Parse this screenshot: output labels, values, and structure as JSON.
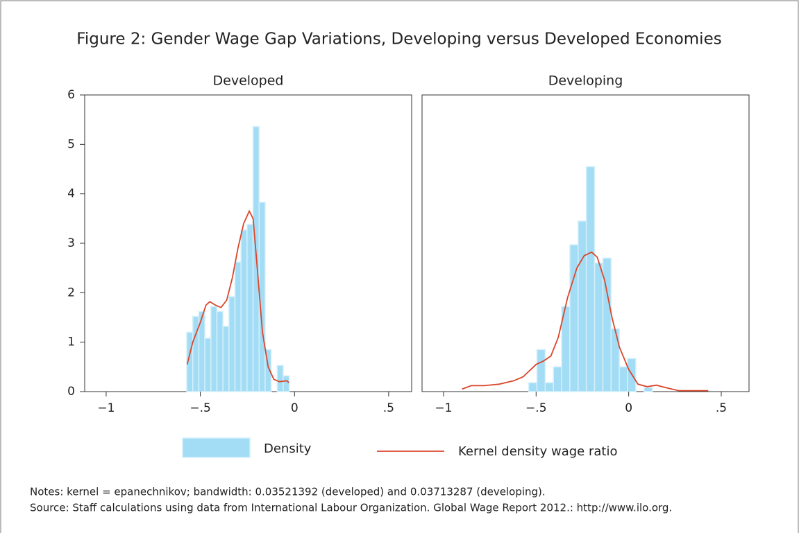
{
  "title": "Figure 2: Gender Wage Gap Variations, Developing versus Developed Economies",
  "legend": [
    {
      "name": "Density",
      "color": "#a3dcf5"
    },
    {
      "name": "Kernel density wage ratio",
      "color": "#d9472b"
    }
  ],
  "notes": "Notes: kernel = epanechnikov; bandwidth: 0.03521392 (developed) and 0.03713287 (developing).",
  "source": "Source: Staff calculations using data from International Labour Organization. Global Wage Report 2012.: http://www.ilo.org.",
  "chart_data": [
    {
      "type": "histogram",
      "title": "Developed",
      "bins": [
        -0.572,
        -0.54,
        -0.508,
        -0.476,
        -0.444,
        -0.412,
        -0.38,
        -0.348,
        -0.316,
        -0.284,
        -0.252,
        -0.22,
        -0.188,
        -0.156,
        -0.124,
        -0.092,
        -0.06,
        -0.028
      ],
      "values": [
        1.2,
        1.52,
        1.62,
        1.08,
        1.72,
        1.62,
        1.32,
        1.92,
        2.62,
        3.27,
        3.38,
        5.36,
        3.83,
        0.85,
        0,
        0.53,
        0.32
      ],
      "kde": {
        "x": [
          -0.57,
          -0.54,
          -0.5,
          -0.47,
          -0.45,
          -0.42,
          -0.39,
          -0.36,
          -0.33,
          -0.3,
          -0.27,
          -0.24,
          -0.22,
          -0.2,
          -0.17,
          -0.14,
          -0.11,
          -0.08,
          -0.04,
          -0.03
        ],
        "values": [
          0.55,
          1.0,
          1.4,
          1.75,
          1.82,
          1.75,
          1.7,
          1.85,
          2.3,
          2.9,
          3.4,
          3.65,
          3.5,
          2.6,
          1.2,
          0.5,
          0.25,
          0.2,
          0.22,
          0.18
        ]
      },
      "xlim": [
        -1.114,
        0.622
      ],
      "ylim": [
        0,
        6
      ],
      "xticks": [
        {
          "value": -1,
          "label": "−1"
        },
        {
          "value": -0.5,
          "label": "−.5"
        },
        0,
        {
          "value": 0.5,
          "label": ".5"
        }
      ],
      "yticks": [
        0,
        1,
        2,
        3,
        4,
        5,
        6
      ]
    },
    {
      "type": "histogram",
      "title": "Developing",
      "bins": [
        -0.54,
        -0.4955,
        -0.451,
        -0.4065,
        -0.362,
        -0.3175,
        -0.273,
        -0.2285,
        -0.184,
        -0.1395,
        -0.095,
        -0.0505,
        -0.006,
        0.0385,
        0.083,
        0.1275
      ],
      "values": [
        0.18,
        0.85,
        0.18,
        0.5,
        1.72,
        2.97,
        3.45,
        4.55,
        2.6,
        2.7,
        1.27,
        0.5,
        0.67,
        0,
        0.08
      ],
      "kde": {
        "x": [
          -0.9,
          -0.85,
          -0.78,
          -0.7,
          -0.62,
          -0.57,
          -0.5,
          -0.46,
          -0.42,
          -0.38,
          -0.33,
          -0.28,
          -0.24,
          -0.2,
          -0.17,
          -0.13,
          -0.09,
          -0.05,
          0,
          0.05,
          0.1,
          0.15,
          0.2,
          0.27,
          0.35,
          0.43
        ],
        "values": [
          0.05,
          0.12,
          0.12,
          0.15,
          0.22,
          0.3,
          0.55,
          0.62,
          0.72,
          1.1,
          1.9,
          2.5,
          2.75,
          2.82,
          2.72,
          2.25,
          1.5,
          0.9,
          0.45,
          0.15,
          0.1,
          0.13,
          0.08,
          0.02,
          0.02,
          0.02
        ]
      },
      "xlim": [
        -1.116,
        0.65
      ],
      "ylim": [
        0,
        6
      ],
      "xticks": [
        {
          "value": -1,
          "label": "−1"
        },
        {
          "value": -0.5,
          "label": "−.5"
        },
        0,
        {
          "value": 0.5,
          "label": ".5"
        }
      ]
    }
  ]
}
